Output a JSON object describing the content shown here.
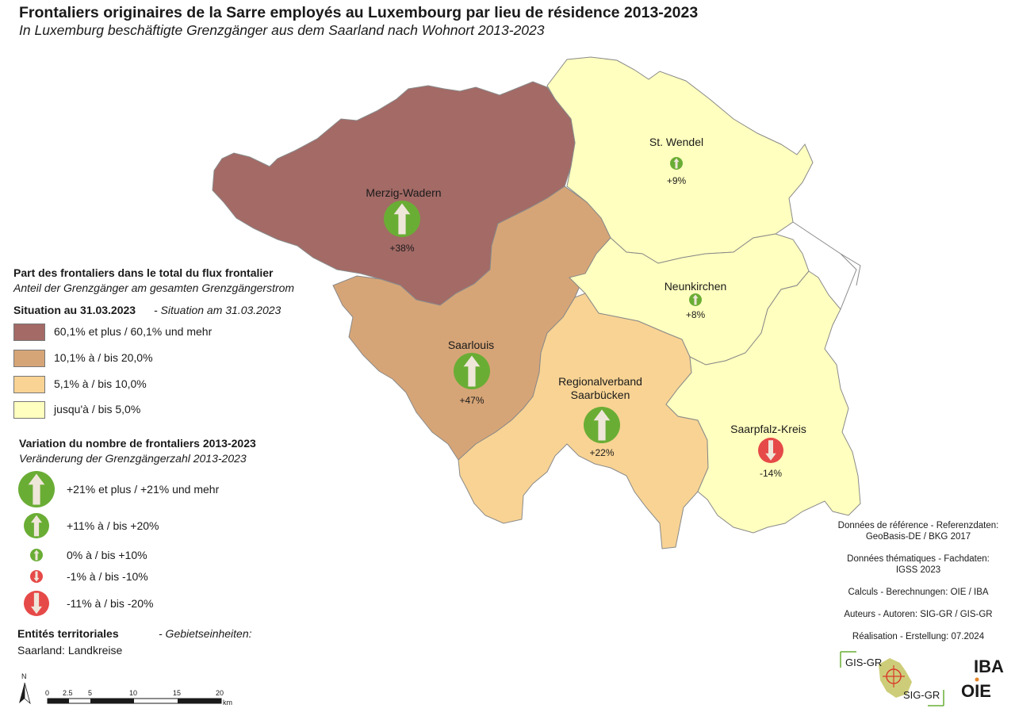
{
  "title": "Frontaliers originaires de la Sarre employés au Luxembourg par lieu de résidence 2013-2023",
  "subtitle": "In Luxemburg beschäftigte Grenzgänger aus dem Saarland nach Wohnort 2013-2023",
  "colors": {
    "class_60_plus": "#a36a66",
    "class_10_20": "#d6a577",
    "class_5_10": "#f8d394",
    "class_0_5": "#ffffbf",
    "increase": "#6aad35",
    "decrease": "#e64a48",
    "arrow": "#efe6da",
    "border": "#8a8a8a"
  },
  "regions": [
    {
      "name": "Merzig-Wadern",
      "class": "60,1% et plus / 60,1% und mehr",
      "change": "+38%",
      "change_value": 38
    },
    {
      "name": "St. Wendel",
      "class": "jusqu'à / bis 5,0%",
      "change": "+9%",
      "change_value": 9
    },
    {
      "name": "Neunkirchen",
      "class": "jusqu'à / bis 5,0%",
      "change": "+8%",
      "change_value": 8
    },
    {
      "name": "Saarlouis",
      "class": "10,1% à / bis 20,0%",
      "change": "+47%",
      "change_value": 47
    },
    {
      "name_line1": "Regionalverband",
      "name_line2": "Saarbücken",
      "class": "5,1% à / bis 10,0%",
      "change": "+22%",
      "change_value": 22
    },
    {
      "name": "Saarpfalz-Kreis",
      "class": "jusqu'à / bis 5,0%",
      "change": "-14%",
      "change_value": -14
    }
  ],
  "legend": {
    "share_title_fr": "Part des frontaliers dans le total du flux frontalier",
    "share_title_de": "Anteil der Grenzgänger am gesamten Grenzgängerstrom",
    "situation_fr": "Situation au 31.03.2023",
    "situation_de": "- Situation am 31.03.2023",
    "classes": [
      "60,1% et plus / 60,1% und mehr",
      "10,1% à / bis 20,0%",
      "5,1% à / bis 10,0%",
      "jusqu'à / bis 5,0%"
    ],
    "variation_title_fr": "Variation du nombre de frontaliers 2013-2023",
    "variation_title_de": "Veränderung der Grenzgängerzahl 2013-2023",
    "variation_classes": [
      "+21% et plus / +21% und mehr",
      "+11% à / bis +20%",
      "0% à / bis +10%",
      "-1% à / bis -10%",
      "-11% à / bis -20%"
    ],
    "entities_fr": "Entités territoriales",
    "entities_de": "- Gebietseinheiten:",
    "entities_value": "Saarland: Landkreise"
  },
  "credits": {
    "ref_1": "Données de référence - Referenzdaten:",
    "ref_2": "GeoBasis-DE / BKG 2017",
    "theme_1": "Données thématiques - Fachdaten:",
    "theme_2": "IGSS 2023",
    "calc": "Calculs - Berechnungen: OIE / IBA",
    "authors": "Auteurs - Autoren: SIG-GR / GIS-GR",
    "date": "Réalisation - Erstellung: 07.2024"
  },
  "scale": {
    "north": "N",
    "ticks": [
      "0",
      "2.5",
      "5",
      "10",
      "15",
      "20"
    ],
    "unit": "km"
  },
  "logos": {
    "gis": "GIS-GR",
    "sig": "SIG-GR",
    "iba": "IBA",
    "oie": "OIE"
  }
}
